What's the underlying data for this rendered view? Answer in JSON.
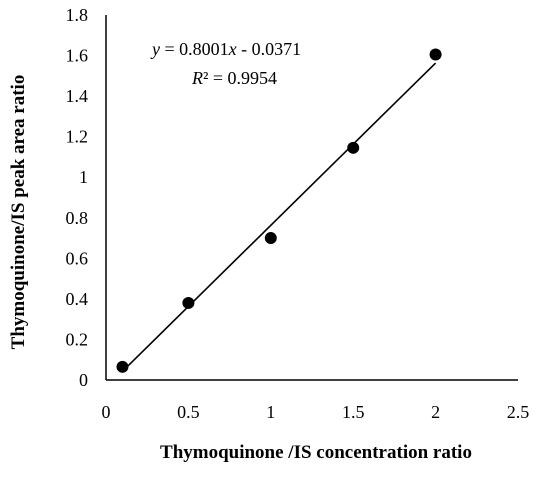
{
  "chart_data": {
    "type": "scatter",
    "xlabel": "Thymoquinone /IS concentration ratio",
    "ylabel": "Thymoquinone/IS peak area ratio",
    "xlim": [
      0,
      2.5
    ],
    "ylim": [
      0,
      1.8
    ],
    "x_ticks": [
      "0",
      "0.5",
      "1",
      "1.5",
      "2",
      "2.5"
    ],
    "y_ticks": [
      "0",
      "0.2",
      "0.4",
      "0.6",
      "0.8",
      "1",
      "1.2",
      "1.4",
      "1.6",
      "1.8"
    ],
    "grid": false,
    "series": [
      {
        "x": [
          0.1,
          0.5,
          1.0,
          1.5,
          2.0
        ],
        "y": [
          0.065,
          0.38,
          0.7,
          1.145,
          1.605
        ],
        "marker_color": "#000000"
      }
    ],
    "trendline": {
      "slope": 0.8001,
      "intercept": -0.0371,
      "x_range": [
        0.1,
        2.0
      ],
      "color": "#000000"
    },
    "annotations": {
      "equation_y": "y",
      "equation_x": "x",
      "equation_mid": " = 0.8001",
      "equation_tail": " - 0.0371",
      "r2_symbol": "R",
      "r2_value": "² = 0.9954"
    }
  }
}
